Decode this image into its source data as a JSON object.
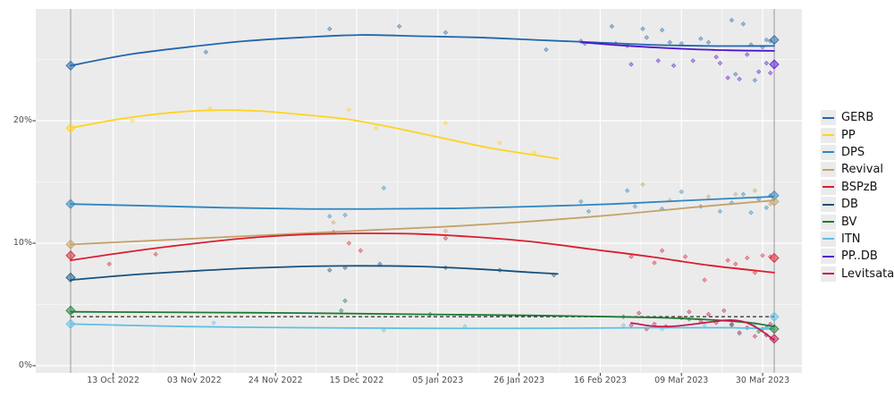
{
  "chart_data": {
    "type": "line",
    "title": "",
    "description": "Opinion polling trend chart with poll scatter points, LOESS trend lines per party, election-result diamonds on two vertical election lines, and a dashed 4% threshold line",
    "x_axis": {
      "tick_labels": [
        "13 Oct 2022",
        "03 Nov 2022",
        "24 Nov 2022",
        "15 Dec 2022",
        "05 Jan 2023",
        "26 Jan 2023",
        "16 Feb 2023",
        "09 Mar 2023",
        "30 Mar 2023"
      ],
      "tick_days": [
        11,
        32,
        53,
        74,
        95,
        116,
        137,
        158,
        179
      ],
      "domain_days": [
        0,
        182
      ]
    },
    "y_axis": {
      "tick_labels": [
        "0%",
        "10%",
        "20%"
      ],
      "tick_values": [
        0,
        10,
        20
      ],
      "minor_values": [
        5,
        15,
        25
      ],
      "range": [
        0,
        29.1
      ]
    },
    "threshold": {
      "value": 4,
      "color": "#3d3d3d",
      "style": "dashed"
    },
    "election_lines": {
      "days": [
        0,
        182
      ],
      "color": "#999999"
    },
    "colors": {
      "panel_bg": "#ebebeb",
      "grid": "#ffffff",
      "axis_text": "#4d4d4d"
    },
    "series": [
      {
        "label": "GERB",
        "color": "#2166ac",
        "trend": [
          [
            0,
            24.5
          ],
          [
            15,
            25.4
          ],
          [
            30,
            26.0
          ],
          [
            45,
            26.5
          ],
          [
            60,
            26.8
          ],
          [
            75,
            27.0
          ],
          [
            90,
            26.9
          ],
          [
            105,
            26.8
          ],
          [
            120,
            26.6
          ],
          [
            135,
            26.4
          ],
          [
            150,
            26.2
          ],
          [
            165,
            26.1
          ],
          [
            182,
            26.1
          ]
        ],
        "polls": [
          [
            35,
            25.6
          ],
          [
            67,
            27.5
          ],
          [
            85,
            27.7
          ],
          [
            97,
            27.2
          ],
          [
            123,
            25.8
          ],
          [
            132,
            26.5
          ],
          [
            133,
            26.3
          ],
          [
            140,
            27.7
          ],
          [
            141,
            26.3
          ],
          [
            144,
            26.1
          ],
          [
            148,
            27.5
          ],
          [
            149,
            26.8
          ],
          [
            153,
            27.4
          ],
          [
            155,
            26.4
          ],
          [
            158,
            26.3
          ],
          [
            163,
            26.7
          ],
          [
            165,
            26.4
          ],
          [
            171,
            28.2
          ],
          [
            172,
            23.8
          ],
          [
            174,
            27.9
          ],
          [
            176,
            26.2
          ],
          [
            177,
            23.3
          ],
          [
            179,
            26.0
          ],
          [
            180,
            26.6
          ],
          [
            181,
            26.5
          ]
        ],
        "result_start": 24.5,
        "result_end": 26.6
      },
      {
        "label": "PP",
        "color": "#ffd320",
        "trend": [
          [
            0,
            19.4
          ],
          [
            12,
            20.1
          ],
          [
            24,
            20.6
          ],
          [
            36,
            20.85
          ],
          [
            48,
            20.8
          ],
          [
            60,
            20.5
          ],
          [
            72,
            20.1
          ],
          [
            84,
            19.4
          ],
          [
            96,
            18.6
          ],
          [
            108,
            17.8
          ],
          [
            120,
            17.2
          ],
          [
            126,
            16.9
          ]
        ],
        "polls": [
          [
            16,
            20.0
          ],
          [
            36,
            21.0
          ],
          [
            72,
            20.9
          ],
          [
            79,
            19.4
          ],
          [
            97,
            19.8
          ],
          [
            111,
            18.2
          ],
          [
            120,
            17.4
          ]
        ],
        "result_start": 19.4,
        "result_end": null
      },
      {
        "label": "DPS",
        "color": "#2e86c1",
        "trend": [
          [
            0,
            13.2
          ],
          [
            20,
            13.05
          ],
          [
            40,
            12.9
          ],
          [
            60,
            12.8
          ],
          [
            80,
            12.8
          ],
          [
            100,
            12.85
          ],
          [
            120,
            13.0
          ],
          [
            140,
            13.2
          ],
          [
            160,
            13.5
          ],
          [
            182,
            13.8
          ]
        ],
        "polls": [
          [
            67,
            12.2
          ],
          [
            71,
            12.3
          ],
          [
            81,
            14.5
          ],
          [
            132,
            13.4
          ],
          [
            134,
            12.6
          ],
          [
            144,
            14.3
          ],
          [
            146,
            13.0
          ],
          [
            153,
            12.8
          ],
          [
            158,
            14.2
          ],
          [
            163,
            13.0
          ],
          [
            168,
            12.6
          ],
          [
            171,
            13.3
          ],
          [
            174,
            14.0
          ],
          [
            176,
            12.5
          ],
          [
            178,
            13.6
          ],
          [
            180,
            12.9
          ],
          [
            181,
            13.9
          ]
        ],
        "result_start": 13.2,
        "result_end": 13.9
      },
      {
        "label": "Revival",
        "color": "#c3a26a",
        "trend": [
          [
            0,
            9.9
          ],
          [
            20,
            10.2
          ],
          [
            40,
            10.5
          ],
          [
            60,
            10.8
          ],
          [
            80,
            11.1
          ],
          [
            100,
            11.4
          ],
          [
            120,
            11.8
          ],
          [
            140,
            12.3
          ],
          [
            160,
            12.9
          ],
          [
            182,
            13.5
          ]
        ],
        "polls": [
          [
            68,
            11.7
          ],
          [
            97,
            11.0
          ],
          [
            148,
            14.8
          ],
          [
            155,
            13.5
          ],
          [
            165,
            13.8
          ],
          [
            172,
            14.0
          ],
          [
            177,
            14.3
          ],
          [
            181,
            13.2
          ]
        ],
        "result_start": 9.9,
        "result_end": 13.4
      },
      {
        "label": "BSPzB",
        "color": "#dc1c2e",
        "trend": [
          [
            0,
            8.6
          ],
          [
            15,
            9.3
          ],
          [
            30,
            9.9
          ],
          [
            45,
            10.4
          ],
          [
            60,
            10.7
          ],
          [
            75,
            10.8
          ],
          [
            90,
            10.75
          ],
          [
            105,
            10.5
          ],
          [
            120,
            10.1
          ],
          [
            135,
            9.5
          ],
          [
            150,
            8.9
          ],
          [
            165,
            8.2
          ],
          [
            182,
            7.6
          ]
        ],
        "polls": [
          [
            10,
            8.3
          ],
          [
            22,
            9.1
          ],
          [
            68,
            10.9
          ],
          [
            72,
            10.0
          ],
          [
            75,
            9.4
          ],
          [
            97,
            10.4
          ],
          [
            145,
            8.9
          ],
          [
            151,
            8.4
          ],
          [
            153,
            9.4
          ],
          [
            159,
            8.9
          ],
          [
            164,
            7.0
          ],
          [
            170,
            8.6
          ],
          [
            172,
            8.3
          ],
          [
            175,
            8.8
          ],
          [
            177,
            7.6
          ],
          [
            179,
            9.0
          ],
          [
            181,
            8.9
          ]
        ],
        "result_start": 9.0,
        "result_end": 8.8
      },
      {
        "label": "DB",
        "color": "#17517e",
        "trend": [
          [
            0,
            7.0
          ],
          [
            15,
            7.4
          ],
          [
            30,
            7.7
          ],
          [
            45,
            7.95
          ],
          [
            60,
            8.1
          ],
          [
            75,
            8.15
          ],
          [
            90,
            8.1
          ],
          [
            105,
            7.9
          ],
          [
            120,
            7.6
          ],
          [
            126,
            7.5
          ]
        ],
        "polls": [
          [
            67,
            7.8
          ],
          [
            71,
            8.0
          ],
          [
            80,
            8.3
          ],
          [
            97,
            8.0
          ],
          [
            111,
            7.8
          ],
          [
            125,
            7.4
          ]
        ],
        "result_start": 7.2,
        "result_end": null
      },
      {
        "label": "BV",
        "color": "#1f7a33",
        "trend": [
          [
            0,
            4.4
          ],
          [
            30,
            4.35
          ],
          [
            60,
            4.3
          ],
          [
            90,
            4.2
          ],
          [
            120,
            4.1
          ],
          [
            140,
            4.0
          ],
          [
            155,
            3.9
          ],
          [
            168,
            3.7
          ],
          [
            176,
            3.5
          ],
          [
            182,
            3.2
          ]
        ],
        "polls": [
          [
            70,
            4.5
          ],
          [
            71,
            5.3
          ],
          [
            93,
            4.2
          ],
          [
            143,
            4.0
          ],
          [
            160,
            3.8
          ],
          [
            171,
            3.3
          ],
          [
            178,
            2.8
          ],
          [
            180,
            3.1
          ]
        ],
        "result_start": 4.5,
        "result_end": 3.0
      },
      {
        "label": "ITN",
        "color": "#5fc0e6",
        "trend": [
          [
            0,
            3.4
          ],
          [
            30,
            3.2
          ],
          [
            60,
            3.1
          ],
          [
            90,
            3.05
          ],
          [
            120,
            3.05
          ],
          [
            150,
            3.1
          ],
          [
            170,
            3.1
          ],
          [
            182,
            3.0
          ]
        ],
        "polls": [
          [
            37,
            3.5
          ],
          [
            81,
            2.9
          ],
          [
            102,
            3.2
          ],
          [
            143,
            3.3
          ],
          [
            153,
            3.0
          ],
          [
            164,
            3.3
          ],
          [
            173,
            2.6
          ],
          [
            177,
            3.4
          ],
          [
            180,
            2.5
          ],
          [
            181,
            3.2
          ]
        ],
        "result_start": 3.4,
        "result_end": 4.0
      },
      {
        "label": "PP..DB",
        "color": "#5214cc",
        "trend": [
          [
            132,
            26.4
          ],
          [
            140,
            26.2
          ],
          [
            150,
            26.0
          ],
          [
            160,
            25.85
          ],
          [
            170,
            25.75
          ],
          [
            182,
            25.7
          ]
        ],
        "polls": [
          [
            145,
            24.6
          ],
          [
            152,
            24.9
          ],
          [
            156,
            24.5
          ],
          [
            161,
            24.9
          ],
          [
            167,
            25.2
          ],
          [
            168,
            24.7
          ],
          [
            170,
            23.5
          ],
          [
            173,
            23.4
          ],
          [
            175,
            25.4
          ],
          [
            178,
            24.0
          ],
          [
            180,
            24.7
          ],
          [
            181,
            23.9
          ]
        ],
        "result_start": null,
        "result_end": 24.6
      },
      {
        "label": "Levitsata",
        "color": "#c01a4e",
        "trend": [
          [
            145,
            3.5
          ],
          [
            150,
            3.25
          ],
          [
            155,
            3.2
          ],
          [
            160,
            3.35
          ],
          [
            165,
            3.55
          ],
          [
            169,
            3.7
          ],
          [
            172,
            3.7
          ],
          [
            175,
            3.5
          ],
          [
            178,
            3.0
          ],
          [
            182,
            2.1
          ]
        ],
        "polls": [
          [
            145,
            3.3
          ],
          [
            147,
            4.3
          ],
          [
            149,
            3.0
          ],
          [
            151,
            3.4
          ],
          [
            154,
            3.2
          ],
          [
            158,
            3.9
          ],
          [
            160,
            4.4
          ],
          [
            163,
            3.6
          ],
          [
            165,
            4.2
          ],
          [
            167,
            3.5
          ],
          [
            169,
            4.5
          ],
          [
            171,
            3.4
          ],
          [
            173,
            2.7
          ],
          [
            175,
            3.1
          ],
          [
            177,
            2.4
          ],
          [
            179,
            3.0
          ],
          [
            180,
            2.5
          ],
          [
            181,
            3.4
          ]
        ],
        "result_start": null,
        "result_end": 2.2
      }
    ],
    "legend": {
      "position": "right"
    }
  }
}
